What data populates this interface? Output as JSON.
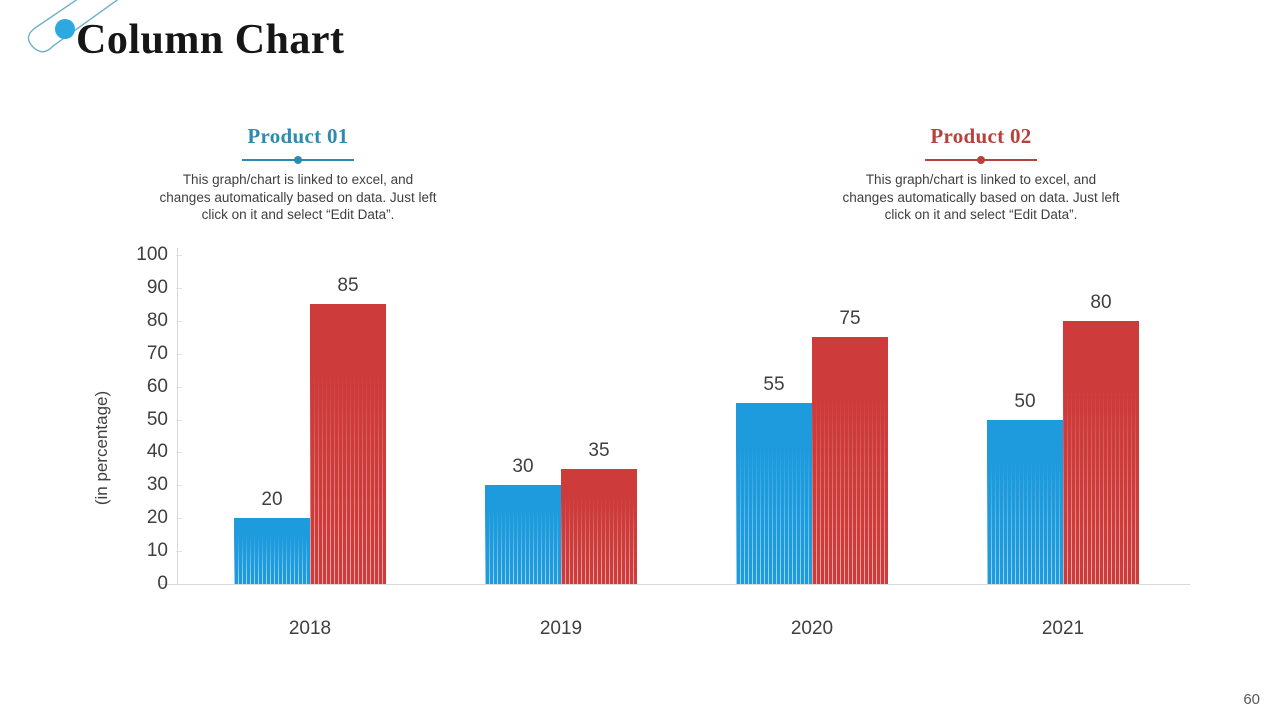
{
  "header": {
    "title": "Column Chart"
  },
  "products": [
    {
      "title": "Product 01",
      "accent": "#2e8bb0",
      "description": "This graph/chart is linked to excel, and\nchanges automatically based on data. Just left\nclick on it and select “Edit Data”."
    },
    {
      "title": "Product 02",
      "accent": "#b5423c",
      "description": "This graph/chart is linked to excel, and\nchanges automatically based on data. Just left\nclick on it and select “Edit Data”."
    }
  ],
  "chart_data": {
    "type": "bar",
    "categories": [
      "2018",
      "2019",
      "2020",
      "2021"
    ],
    "series": [
      {
        "name": "Product 01",
        "color": "#1e9bdc",
        "values": [
          20,
          30,
          55,
          50
        ]
      },
      {
        "name": "Product 02",
        "color": "#ce3b3b",
        "values": [
          85,
          35,
          75,
          80
        ]
      }
    ],
    "title": "",
    "xlabel": "",
    "ylabel": "(in percentage)",
    "ylim": [
      0,
      100
    ],
    "ytick_step": 10,
    "grid": false,
    "legend_position": "none",
    "data_labels": true
  },
  "footer": {
    "page_number": "60"
  },
  "decoration": {
    "dot_color": "#2ba9e0",
    "line_color": "#6fb0cc"
  }
}
